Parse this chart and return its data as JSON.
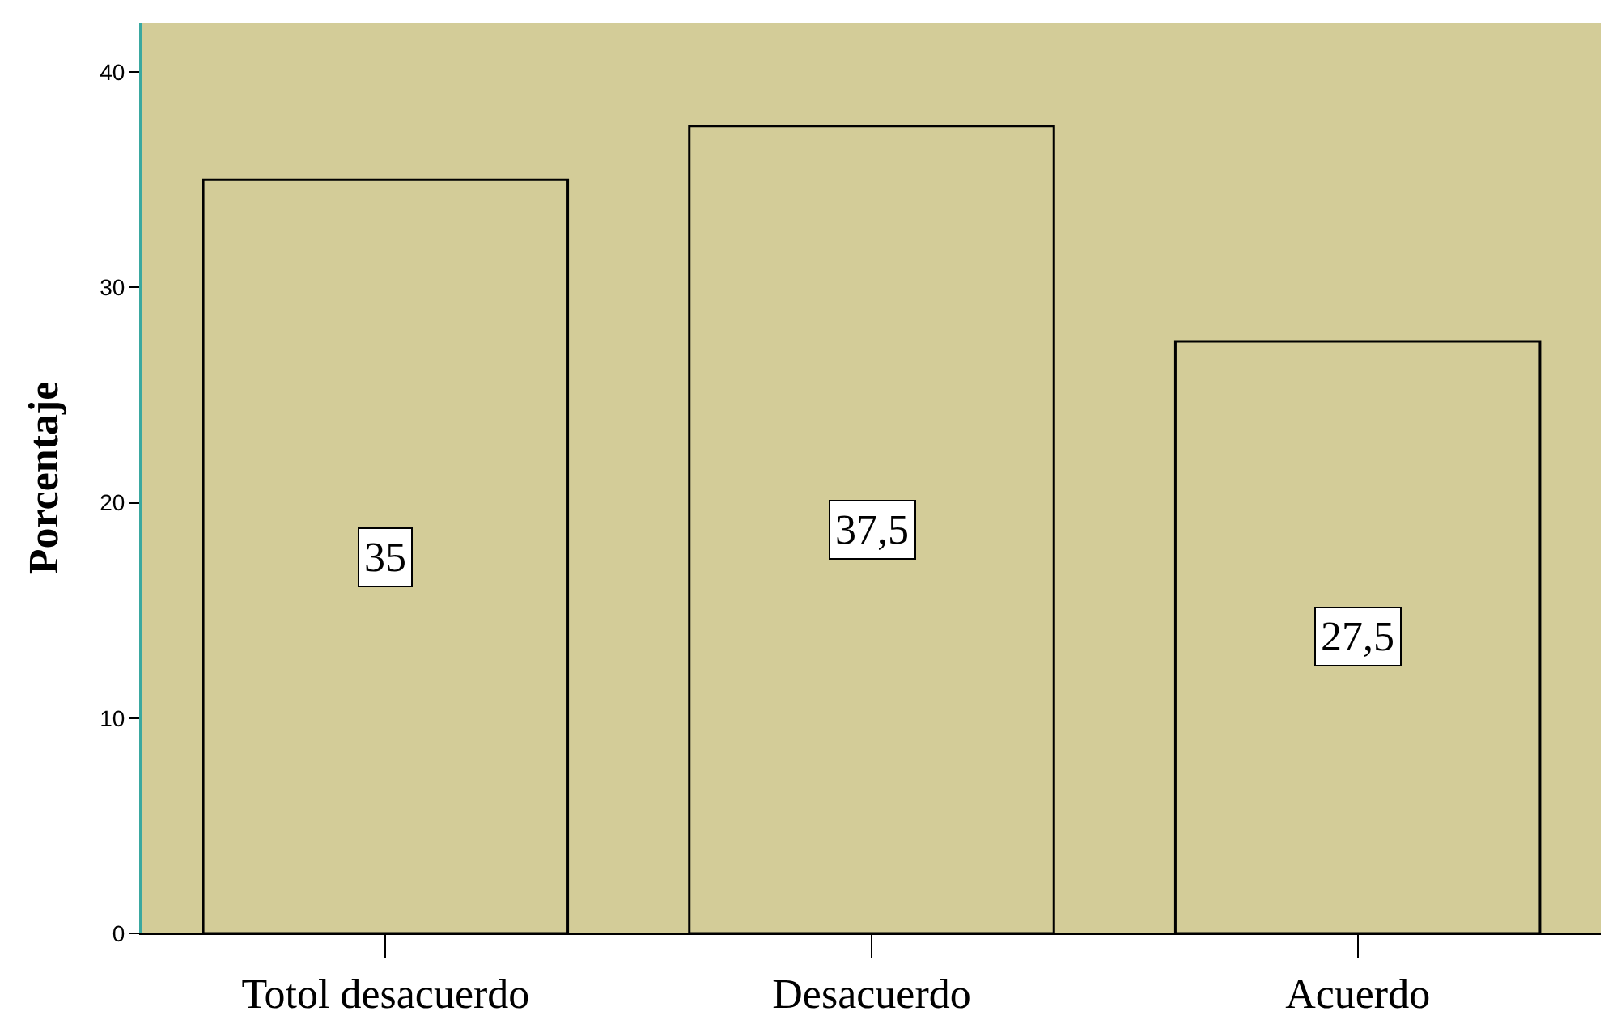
{
  "chart_data": {
    "type": "bar",
    "ylabel": "Porcentaje",
    "categories": [
      "Totol desacuerdo",
      "Desacuerdo",
      "Acuerdo"
    ],
    "values": [
      35,
      37.5,
      27.5
    ],
    "value_labels": [
      "35",
      "37,5",
      "27,5"
    ],
    "color": "#d3cc98",
    "ylim": [
      0,
      42.3
    ],
    "yticks": [
      0,
      10,
      20,
      30,
      40
    ],
    "grid": false,
    "legend": false
  }
}
